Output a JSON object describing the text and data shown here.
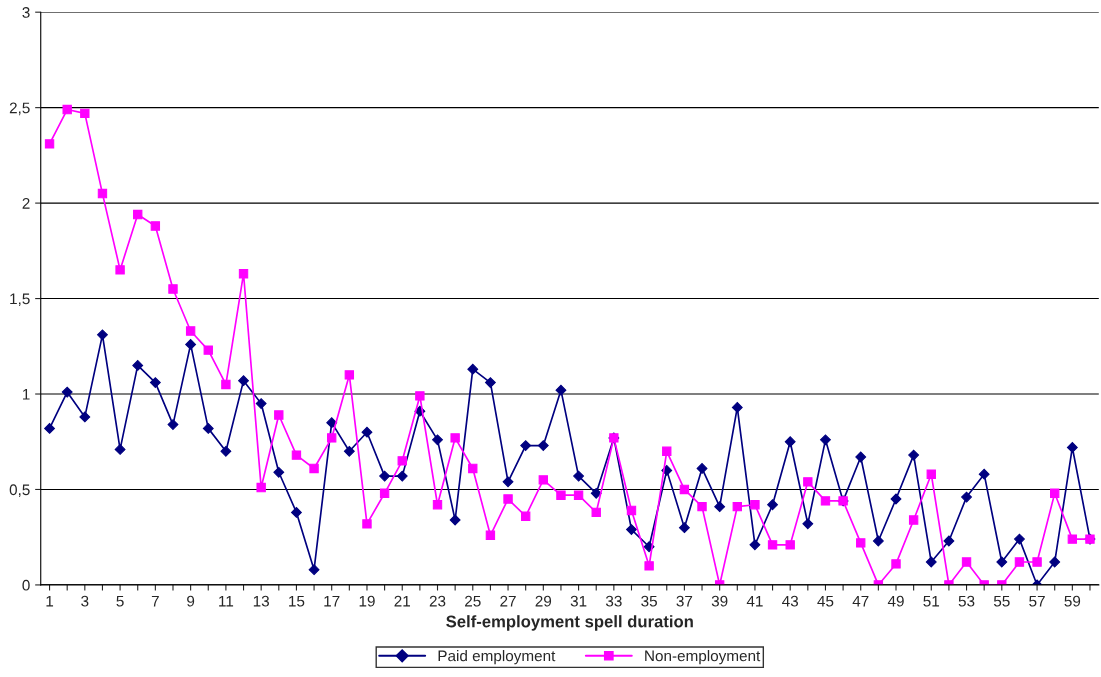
{
  "chart_data": {
    "type": "line",
    "xlabel": "Self-employment spell duration",
    "categories": [
      "1",
      null,
      "3",
      null,
      "5",
      null,
      "7",
      null,
      "9",
      null,
      "11",
      null,
      "13",
      null,
      "15",
      null,
      "17",
      null,
      "19",
      null,
      "21",
      null,
      "23",
      null,
      "25",
      null,
      "27",
      null,
      "29",
      null,
      "31",
      null,
      "33",
      null,
      "35",
      null,
      "37",
      null,
      "39",
      null,
      "41",
      null,
      "43",
      null,
      "45",
      null,
      "47",
      null,
      "49",
      null,
      "51",
      null,
      "53",
      null,
      "55",
      null,
      "57",
      null,
      "59",
      null
    ],
    "series": [
      {
        "name": "Paid employment",
        "color": "#000080",
        "marker": "diamond",
        "values": [
          0.82,
          1.01,
          0.88,
          1.31,
          0.71,
          1.15,
          1.06,
          0.84,
          1.26,
          0.82,
          0.7,
          1.07,
          0.95,
          0.59,
          0.38,
          0.08,
          0.85,
          0.7,
          0.8,
          0.57,
          0.57,
          0.91,
          0.76,
          0.34,
          1.13,
          1.06,
          0.54,
          0.73,
          0.73,
          1.02,
          0.57,
          0.48,
          0.77,
          0.29,
          0.2,
          0.6,
          0.3,
          0.61,
          0.41,
          0.93,
          0.21,
          0.42,
          0.75,
          0.32,
          0.76,
          0.44,
          0.67,
          0.23,
          0.45,
          0.68,
          0.12,
          0.23,
          0.46,
          0.58,
          0.12,
          0.24,
          0.0,
          0.12,
          0.72,
          0.24
        ]
      },
      {
        "name": "Non-employment",
        "color": "#ff00ff",
        "marker": "square",
        "values": [
          2.31,
          2.49,
          2.47,
          2.05,
          1.65,
          1.94,
          1.88,
          1.55,
          1.33,
          1.23,
          1.05,
          1.63,
          0.51,
          0.89,
          0.68,
          0.61,
          0.77,
          1.1,
          0.32,
          0.48,
          0.65,
          0.99,
          0.42,
          0.77,
          0.61,
          0.26,
          0.45,
          0.36,
          0.55,
          0.47,
          0.47,
          0.38,
          0.77,
          0.39,
          0.1,
          0.7,
          0.5,
          0.41,
          0.0,
          0.41,
          0.42,
          0.21,
          0.21,
          0.54,
          0.44,
          0.44,
          0.22,
          0.0,
          0.11,
          0.34,
          0.58,
          0.0,
          0.12,
          0.0,
          0.0,
          0.12,
          0.12,
          0.48,
          0.24,
          0.24
        ]
      }
    ],
    "ylim": [
      0,
      3
    ],
    "yticks": [
      0,
      {
        "value": 0.5,
        "label": "0,5"
      },
      1,
      {
        "value": 1.5,
        "label": "1,5"
      },
      2,
      {
        "value": 2.5,
        "label": "2,5"
      },
      3
    ],
    "grid": "y",
    "legend": "bottom"
  }
}
